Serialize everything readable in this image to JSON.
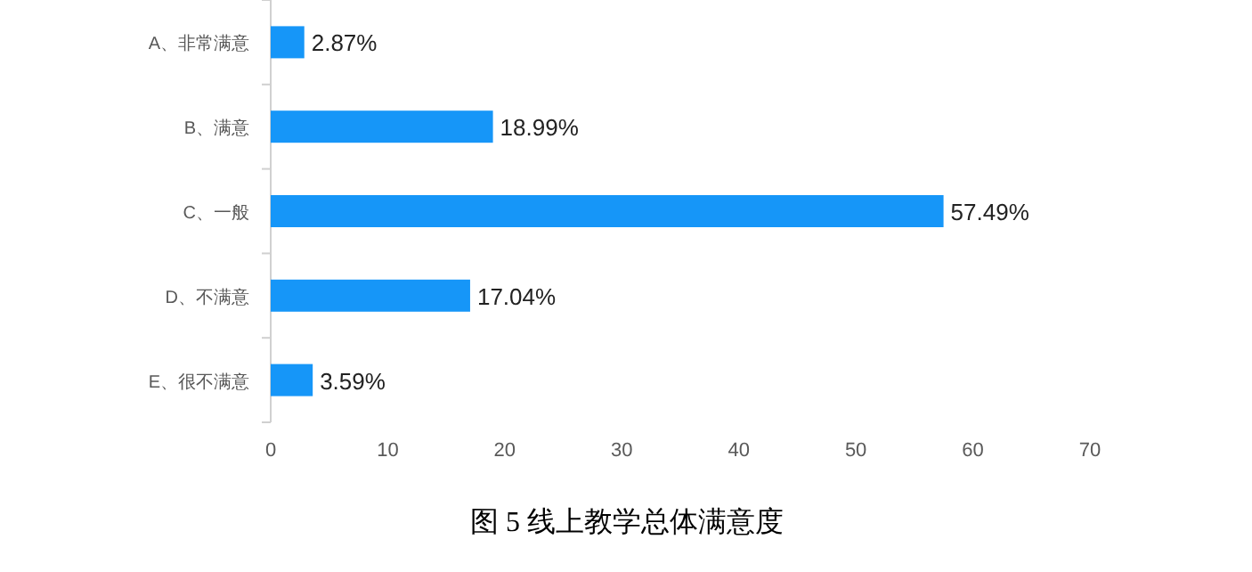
{
  "chart_data": {
    "type": "bar",
    "orientation": "horizontal",
    "title": "图 5  线上教学总体满意度",
    "categories": [
      "A、非常满意",
      "B、满意",
      "C、一般",
      "D、不满意",
      "E、很不满意"
    ],
    "series": [
      {
        "color": "#1696f8",
        "values": [
          2.87,
          18.99,
          57.49,
          17.04,
          3.59
        ],
        "value_labels": [
          "2.87%",
          "18.99%",
          "57.49%",
          "17.04%",
          "3.59%"
        ]
      }
    ],
    "xlim": [
      0,
      70
    ],
    "xticks": [
      0,
      10,
      20,
      30,
      40,
      50,
      60,
      70
    ],
    "grid": false
  }
}
